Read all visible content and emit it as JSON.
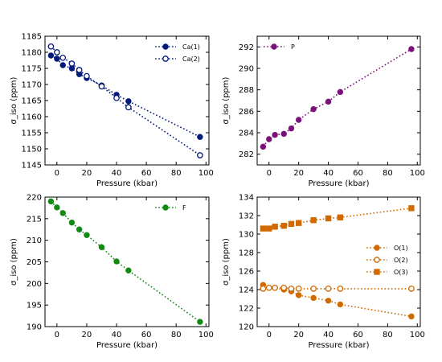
{
  "chart_data": [
    {
      "type": "scatter",
      "xlabel": "Pressure (kbar)",
      "ylabel": "σ_iso (ppm)",
      "xlim": [
        -8,
        102
      ],
      "ylim": [
        1145,
        1185
      ],
      "xticks": [
        0,
        20,
        40,
        60,
        80,
        100
      ],
      "yticks": [
        1145,
        1150,
        1155,
        1160,
        1165,
        1170,
        1175,
        1180,
        1185
      ],
      "legend_position": "top-right",
      "series": [
        {
          "name": "Ca(1)",
          "color": "#001a7a",
          "marker": "filled-circle",
          "x": [
            -4,
            0,
            4,
            10,
            15,
            20,
            30,
            40,
            48,
            96
          ],
          "y": [
            1179,
            1178,
            1176,
            1175,
            1173.2,
            1172,
            1169.7,
            1166.8,
            1164.8,
            1153.7
          ]
        },
        {
          "name": "Ca(2)",
          "color": "#001a7a",
          "marker": "open-circle",
          "x": [
            -4,
            0,
            4,
            10,
            15,
            20,
            30,
            40,
            48,
            96
          ],
          "y": [
            1181.8,
            1180,
            1178.3,
            1176.5,
            1174.5,
            1172.6,
            1169.4,
            1165.8,
            1162.9,
            1148
          ]
        }
      ]
    },
    {
      "type": "scatter",
      "xlabel": "Pressure (kbar)",
      "ylabel": "σ_iso (ppm)",
      "xlim": [
        -8,
        102
      ],
      "ylim": [
        281,
        293
      ],
      "xticks": [
        0,
        20,
        40,
        60,
        80,
        100
      ],
      "yticks": [
        282,
        284,
        286,
        288,
        290,
        292
      ],
      "legend_position": "top-left",
      "series": [
        {
          "name": "P",
          "color": "#7a117a",
          "marker": "filled-circle",
          "x": [
            -4,
            0,
            4,
            10,
            15,
            20,
            30,
            40,
            48,
            96
          ],
          "y": [
            282.7,
            283.4,
            283.8,
            283.9,
            284.4,
            285.2,
            286.2,
            286.9,
            287.8,
            291.8
          ]
        }
      ]
    },
    {
      "type": "scatter",
      "xlabel": "Pressure (kbar)",
      "ylabel": "σ_iso (ppm)",
      "xlim": [
        -8,
        102
      ],
      "ylim": [
        190,
        220
      ],
      "xticks": [
        0,
        20,
        40,
        60,
        80,
        100
      ],
      "yticks": [
        190,
        195,
        200,
        205,
        210,
        215,
        220
      ],
      "legend_position": "top-right",
      "series": [
        {
          "name": "F",
          "color": "#118a11",
          "marker": "filled-circle",
          "x": [
            -4,
            0,
            4,
            10,
            15,
            20,
            30,
            40,
            48,
            96
          ],
          "y": [
            219,
            217.6,
            216.3,
            214.1,
            212.5,
            211.2,
            208.4,
            205.1,
            203,
            191.1
          ]
        }
      ]
    },
    {
      "type": "scatter",
      "xlabel": "Pressure (kbar)",
      "ylabel": "σ_iso (ppm)",
      "xlim": [
        -8,
        102
      ],
      "ylim": [
        120,
        134
      ],
      "xticks": [
        0,
        20,
        40,
        60,
        80,
        100
      ],
      "yticks": [
        120,
        122,
        124,
        126,
        128,
        130,
        132,
        134
      ],
      "legend_position": "center-right",
      "series": [
        {
          "name": "O(1)",
          "color": "#d06a00",
          "marker": "filled-circle",
          "x": [
            -4,
            0,
            4,
            10,
            15,
            20,
            30,
            40,
            48,
            96
          ],
          "y": [
            124.5,
            124.2,
            124.2,
            124,
            123.8,
            123.4,
            123.1,
            122.8,
            122.4,
            121.1
          ]
        },
        {
          "name": "O(2)",
          "color": "#d06a00",
          "marker": "open-circle",
          "x": [
            -4,
            0,
            4,
            10,
            15,
            20,
            30,
            40,
            48,
            96
          ],
          "y": [
            124.1,
            124.2,
            124.2,
            124.2,
            124.1,
            124.1,
            124.1,
            124.1,
            124.1,
            124.1
          ]
        },
        {
          "name": "O(3)",
          "color": "#d06a00",
          "marker": "filled-square",
          "x": [
            -4,
            0,
            4,
            10,
            15,
            20,
            30,
            40,
            48,
            96
          ],
          "y": [
            130.6,
            130.6,
            130.8,
            130.9,
            131.1,
            131.2,
            131.5,
            131.7,
            131.8,
            132.8
          ]
        }
      ]
    }
  ]
}
